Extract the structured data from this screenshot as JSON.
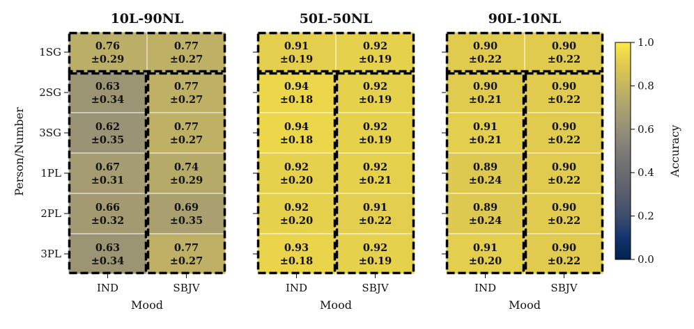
{
  "chart_data": {
    "type": "heatmap",
    "ylabel": "Person/Number",
    "rows": [
      "1SG",
      "2SG",
      "3SG",
      "1PL",
      "2PL",
      "3PL"
    ],
    "columns": [
      "IND",
      "SBJV"
    ],
    "colorbar": {
      "label": "Accuracy",
      "range": [
        0.0,
        1.0
      ],
      "ticks": [
        "0.0",
        "0.2",
        "0.4",
        "0.6",
        "0.8",
        "1.0"
      ],
      "colormap": "cividis"
    },
    "panels": [
      {
        "title": "10L-90NL",
        "xlabel": "Mood",
        "values": [
          [
            0.76,
            0.77
          ],
          [
            0.63,
            0.77
          ],
          [
            0.62,
            0.77
          ],
          [
            0.67,
            0.74
          ],
          [
            0.66,
            0.69
          ],
          [
            0.63,
            0.77
          ]
        ],
        "std": [
          [
            0.29,
            0.27
          ],
          [
            0.34,
            0.27
          ],
          [
            0.35,
            0.27
          ],
          [
            0.31,
            0.29
          ],
          [
            0.32,
            0.35
          ],
          [
            0.34,
            0.27
          ]
        ],
        "mean_labels": [
          [
            "0.76",
            "0.77"
          ],
          [
            "0.63",
            "0.77"
          ],
          [
            "0.62",
            "0.77"
          ],
          [
            "0.67",
            "0.74"
          ],
          [
            "0.66",
            "0.69"
          ],
          [
            "0.63",
            "0.77"
          ]
        ],
        "std_labels": [
          [
            "±0.29",
            "±0.27"
          ],
          [
            "±0.34",
            "±0.27"
          ],
          [
            "±0.35",
            "±0.27"
          ],
          [
            "±0.31",
            "±0.29"
          ],
          [
            "±0.32",
            "±0.35"
          ],
          [
            "±0.34",
            "±0.27"
          ]
        ]
      },
      {
        "title": "50L-50NL",
        "xlabel": "Mood",
        "values": [
          [
            0.91,
            0.92
          ],
          [
            0.94,
            0.92
          ],
          [
            0.94,
            0.92
          ],
          [
            0.92,
            0.92
          ],
          [
            0.92,
            0.91
          ],
          [
            0.93,
            0.92
          ]
        ],
        "std": [
          [
            0.19,
            0.19
          ],
          [
            0.18,
            0.19
          ],
          [
            0.18,
            0.19
          ],
          [
            0.2,
            0.21
          ],
          [
            0.2,
            0.22
          ],
          [
            0.18,
            0.19
          ]
        ],
        "mean_labels": [
          [
            "0.91",
            "0.92"
          ],
          [
            "0.94",
            "0.92"
          ],
          [
            "0.94",
            "0.92"
          ],
          [
            "0.92",
            "0.92"
          ],
          [
            "0.92",
            "0.91"
          ],
          [
            "0.93",
            "0.92"
          ]
        ],
        "std_labels": [
          [
            "±0.19",
            "±0.19"
          ],
          [
            "±0.18",
            "±0.19"
          ],
          [
            "±0.18",
            "±0.19"
          ],
          [
            "±0.20",
            "±0.21"
          ],
          [
            "±0.20",
            "±0.22"
          ],
          [
            "±0.18",
            "±0.19"
          ]
        ]
      },
      {
        "title": "90L-10NL",
        "xlabel": "Mood",
        "values": [
          [
            0.9,
            0.9
          ],
          [
            0.9,
            0.9
          ],
          [
            0.91,
            0.9
          ],
          [
            0.89,
            0.9
          ],
          [
            0.89,
            0.9
          ],
          [
            0.91,
            0.9
          ]
        ],
        "std": [
          [
            0.22,
            0.22
          ],
          [
            0.21,
            0.22
          ],
          [
            0.21,
            0.22
          ],
          [
            0.24,
            0.22
          ],
          [
            0.24,
            0.22
          ],
          [
            0.2,
            0.22
          ]
        ],
        "mean_labels": [
          [
            "0.90",
            "0.90"
          ],
          [
            "0.90",
            "0.90"
          ],
          [
            "0.91",
            "0.90"
          ],
          [
            "0.89",
            "0.90"
          ],
          [
            "0.89",
            "0.90"
          ],
          [
            "0.91",
            "0.90"
          ]
        ],
        "std_labels": [
          [
            "±0.22",
            "±0.22"
          ],
          [
            "±0.21",
            "±0.22"
          ],
          [
            "±0.21",
            "±0.22"
          ],
          [
            "±0.24",
            "±0.22"
          ],
          [
            "±0.24",
            "±0.22"
          ],
          [
            "±0.20",
            "±0.22"
          ]
        ]
      }
    ],
    "highlight_regions": [
      {
        "description": "first row, both columns",
        "rows": [
          0,
          0
        ],
        "cols": [
          0,
          1
        ]
      },
      {
        "description": "rows 2-6, IND column",
        "rows": [
          1,
          5
        ],
        "cols": [
          0,
          0
        ]
      },
      {
        "description": "rows 2-6, SBJV column",
        "rows": [
          1,
          5
        ],
        "cols": [
          1,
          1
        ]
      }
    ]
  }
}
